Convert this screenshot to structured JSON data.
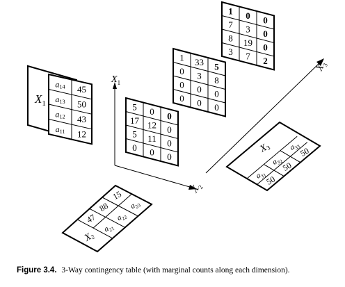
{
  "figure": {
    "caption_label": "Figure 3.4.",
    "caption_text": "3-Way contingency table (with marginal counts along each dimension)."
  },
  "axes": {
    "x1": "X",
    "x1_sub": "1",
    "x2": "X",
    "x2_sub": "2",
    "x3": "X",
    "x3_sub": "3"
  },
  "slices": [
    [
      [
        "5",
        "0",
        "0"
      ],
      [
        "17",
        "12",
        "0"
      ],
      [
        "5",
        "11",
        "0"
      ],
      [
        "0",
        "0",
        "0"
      ]
    ],
    [
      [
        "1",
        "33",
        "5"
      ],
      [
        "0",
        "3",
        "8"
      ],
      [
        "0",
        "0",
        "0"
      ],
      [
        "0",
        "0",
        "0"
      ]
    ],
    [
      [
        "1",
        "0",
        "0"
      ],
      [
        "7",
        "3",
        "0"
      ],
      [
        "8",
        "19",
        "0"
      ],
      [
        "3",
        "7",
        "2"
      ]
    ]
  ],
  "slices_bold": [
    [
      [
        false,
        false,
        true
      ],
      [
        false,
        false,
        false
      ],
      [
        false,
        false,
        false
      ],
      [
        false,
        false,
        false
      ]
    ],
    [
      [
        false,
        false,
        true
      ],
      [
        false,
        false,
        false
      ],
      [
        false,
        false,
        false
      ],
      [
        false,
        false,
        false
      ]
    ],
    [
      [
        true,
        true,
        true
      ],
      [
        false,
        false,
        true
      ],
      [
        false,
        false,
        true
      ],
      [
        false,
        false,
        true
      ]
    ]
  ],
  "marginal_x1": {
    "label": "X",
    "label_sub": "1",
    "rows": [
      {
        "sym": "a",
        "sub": "14",
        "value": "45"
      },
      {
        "sym": "a",
        "sub": "13",
        "value": "50"
      },
      {
        "sym": "a",
        "sub": "12",
        "value": "43"
      },
      {
        "sym": "a",
        "sub": "11",
        "value": "12"
      }
    ]
  },
  "marginal_x2": {
    "label": "X",
    "label_sub": "2",
    "cols": [
      {
        "sym": "a",
        "sub": "21",
        "value": "47"
      },
      {
        "sym": "a",
        "sub": "22",
        "value": "88"
      },
      {
        "sym": "a",
        "sub": "23",
        "value": "15"
      }
    ]
  },
  "marginal_x3": {
    "label": "X",
    "label_sub": "3",
    "cols": [
      {
        "sym": "a",
        "sub": "31",
        "value": "50"
      },
      {
        "sym": "a",
        "sub": "32",
        "value": "50"
      },
      {
        "sym": "a",
        "sub": "33",
        "value": "50"
      }
    ]
  }
}
